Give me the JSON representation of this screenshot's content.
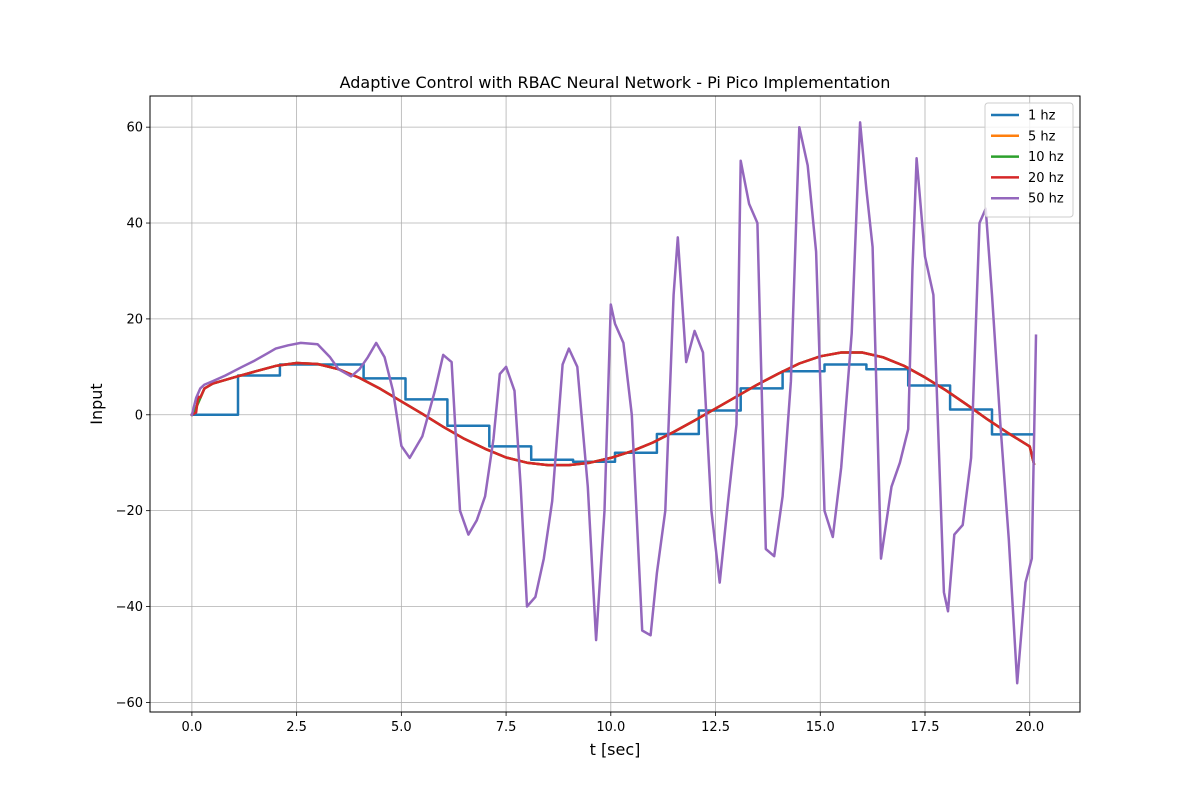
{
  "chart_data": {
    "type": "line",
    "title": "Adaptive Control with RBAC Neural Network - Pi Pico Implementation",
    "xlabel": "t [sec]",
    "ylabel": "Input",
    "xlim": [
      -1.0,
      21.2
    ],
    "ylim": [
      -62,
      66.5
    ],
    "xticks": [
      0.0,
      2.5,
      5.0,
      7.5,
      10.0,
      12.5,
      15.0,
      17.5,
      20.0
    ],
    "xtick_labels": [
      "0.0",
      "2.5",
      "5.0",
      "7.5",
      "10.0",
      "12.5",
      "15.0",
      "17.5",
      "20.0"
    ],
    "yticks": [
      -60,
      -40,
      -20,
      0,
      20,
      40,
      60
    ],
    "ytick_labels": [
      "−60",
      "−40",
      "−20",
      "0",
      "20",
      "40",
      "60"
    ],
    "grid": true,
    "legend_position": "top-right",
    "series": [
      {
        "name": "1 hz",
        "color": "#1f77b4",
        "x": [
          0,
          0.05,
          1.1,
          1.1,
          2.1,
          2.1,
          3.1,
          3.1,
          4.1,
          4.1,
          5.1,
          5.1,
          6.1,
          6.1,
          7.1,
          7.1,
          8.1,
          8.1,
          9.1,
          9.1,
          10.1,
          10.1,
          11.1,
          11.1,
          12.1,
          12.1,
          13.1,
          13.1,
          14.1,
          14.1,
          15.1,
          15.1,
          16.1,
          16.1,
          17.1,
          17.1,
          18.1,
          18.1,
          19.1,
          19.1,
          20.05
        ],
        "y": [
          0,
          0,
          0,
          8.2,
          8.2,
          10.5,
          10.5,
          10.5,
          10.5,
          7.6,
          7.6,
          3.2,
          3.2,
          -2.3,
          -2.3,
          -6.6,
          -6.6,
          -9.4,
          -9.4,
          -9.8,
          -9.8,
          -7.9,
          -7.9,
          -4.0,
          -4.0,
          0.9,
          0.9,
          5.5,
          5.5,
          9.1,
          9.1,
          10.5,
          10.5,
          9.5,
          9.5,
          6.1,
          6.1,
          1.1,
          1.1,
          -4.1,
          -4.1
        ]
      },
      {
        "name": "5 hz",
        "color": "#ff7f0e",
        "x": [
          0,
          0.1,
          0.2,
          0.3,
          0.5,
          1,
          1.5,
          2,
          2.5,
          3,
          3.5,
          4,
          4.5,
          5,
          5.5,
          6,
          6.5,
          7,
          7.5,
          8,
          8.5,
          9,
          9.5,
          10,
          10.5,
          11,
          11.5,
          12,
          12.5,
          13,
          13.5,
          14,
          14.5,
          15,
          15.5,
          16,
          16.5,
          17,
          17.5,
          18,
          18.5,
          19,
          19.5,
          20,
          20.1
        ],
        "y": [
          0,
          1.5,
          3.5,
          5.5,
          6.5,
          7.8,
          9.0,
          10.2,
          10.8,
          10.6,
          9.5,
          7.7,
          5.4,
          2.8,
          0.2,
          -2.5,
          -5.0,
          -7.1,
          -8.9,
          -10.0,
          -10.5,
          -10.5,
          -10.0,
          -9.0,
          -7.6,
          -5.8,
          -3.6,
          -1.2,
          1.3,
          3.8,
          6.3,
          8.6,
          10.7,
          12.2,
          13.0,
          13.0,
          12.0,
          10.2,
          7.8,
          5.1,
          2.1,
          -1.0,
          -3.9,
          -6.6,
          -10.2
        ]
      },
      {
        "name": "10 hz",
        "color": "#2ca02c",
        "x": [
          0,
          0.1,
          0.2,
          0.3,
          0.5,
          1,
          1.5,
          2,
          2.5,
          3,
          3.5,
          4,
          4.5,
          5,
          5.5,
          6,
          6.5,
          7,
          7.5,
          8,
          8.5,
          9,
          9.5,
          10,
          10.5,
          11,
          11.5,
          12,
          12.5,
          13,
          13.5,
          14,
          14.5,
          15,
          15.5,
          16,
          16.5,
          17,
          17.5,
          18,
          18.5,
          19,
          19.5,
          20,
          20.1
        ],
        "y": [
          0,
          1.5,
          3.5,
          5.5,
          6.5,
          7.8,
          9.0,
          10.2,
          10.8,
          10.6,
          9.5,
          7.7,
          5.4,
          2.8,
          0.2,
          -2.5,
          -5.0,
          -7.1,
          -8.9,
          -10.0,
          -10.5,
          -10.5,
          -10.0,
          -9.0,
          -7.6,
          -5.8,
          -3.6,
          -1.2,
          1.3,
          3.8,
          6.3,
          8.6,
          10.7,
          12.2,
          13.0,
          13.0,
          12.0,
          10.2,
          7.8,
          5.1,
          2.1,
          -1.0,
          -3.9,
          -6.6,
          -10.2
        ]
      },
      {
        "name": "20 hz",
        "color": "#d62728",
        "x": [
          0,
          0.1,
          0.15,
          0.2,
          0.3,
          0.5,
          1,
          1.5,
          2,
          2.5,
          3,
          3.5,
          4,
          4.5,
          5,
          5.5,
          6,
          6.5,
          7,
          7.5,
          8,
          8.5,
          9,
          9.5,
          10,
          10.5,
          11,
          11.5,
          12,
          12.5,
          13,
          13.5,
          14,
          14.5,
          15,
          15.5,
          16,
          16.5,
          17,
          17.5,
          18,
          18.5,
          19,
          19.5,
          20,
          20.1
        ],
        "y": [
          0,
          0.5,
          3.8,
          3.6,
          5.5,
          6.5,
          7.8,
          9.0,
          10.2,
          10.8,
          10.6,
          9.5,
          7.7,
          5.4,
          2.8,
          0.2,
          -2.5,
          -5.0,
          -7.1,
          -8.9,
          -10.0,
          -10.5,
          -10.5,
          -10.0,
          -9.0,
          -7.6,
          -5.8,
          -3.6,
          -1.2,
          1.3,
          3.8,
          6.3,
          8.6,
          10.7,
          12.2,
          13.0,
          13.0,
          12.0,
          10.2,
          7.8,
          5.1,
          2.1,
          -1.0,
          -3.9,
          -6.6,
          -10.2
        ]
      },
      {
        "name": "50 hz",
        "color": "#9467bd",
        "x": [
          0,
          0.1,
          0.2,
          0.3,
          0.5,
          0.8,
          1.2,
          1.5,
          1.8,
          2.0,
          2.3,
          2.6,
          3.0,
          3.3,
          3.5,
          3.8,
          4.0,
          4.2,
          4.4,
          4.6,
          4.8,
          5.0,
          5.2,
          5.5,
          5.8,
          6.0,
          6.2,
          6.4,
          6.6,
          6.8,
          7.0,
          7.2,
          7.35,
          7.5,
          7.7,
          7.85,
          8.0,
          8.2,
          8.4,
          8.6,
          8.85,
          9.0,
          9.2,
          9.45,
          9.65,
          9.85,
          10.0,
          10.1,
          10.3,
          10.5,
          10.75,
          10.95,
          11.1,
          11.3,
          11.5,
          11.6,
          11.8,
          12.0,
          12.2,
          12.4,
          12.6,
          12.8,
          13.0,
          13.1,
          13.3,
          13.5,
          13.7,
          13.9,
          14.1,
          14.3,
          14.5,
          14.7,
          14.9,
          15.1,
          15.3,
          15.5,
          15.75,
          15.95,
          16.1,
          16.25,
          16.45,
          16.7,
          16.9,
          17.1,
          17.2,
          17.3,
          17.5,
          17.7,
          17.95,
          18.05,
          18.2,
          18.4,
          18.6,
          18.8,
          18.95,
          19.1,
          19.3,
          19.5,
          19.7,
          19.9,
          20.05,
          20.15
        ],
        "y": [
          0,
          3.5,
          5.5,
          6.3,
          7.0,
          8.2,
          10.0,
          11.3,
          12.8,
          13.8,
          14.5,
          15.0,
          14.7,
          12.0,
          9.5,
          8.0,
          9.5,
          12.0,
          15.0,
          12.0,
          5.0,
          -6.5,
          -9.0,
          -4.5,
          5.0,
          12.5,
          11.0,
          -20.0,
          -25.0,
          -22.0,
          -17.0,
          -5.0,
          8.5,
          10.0,
          5.0,
          -15.0,
          -40.0,
          -38.0,
          -30.0,
          -18.0,
          10.5,
          13.8,
          10.0,
          -15.0,
          -47.0,
          -20.0,
          23.0,
          19.0,
          15.0,
          0.0,
          -45.0,
          -46.0,
          -33.0,
          -20.0,
          25.0,
          37.0,
          11.0,
          17.5,
          13.0,
          -20.0,
          -35.0,
          -18.0,
          -2.0,
          53.0,
          44.0,
          40.0,
          -28.0,
          -29.5,
          -17.0,
          7.0,
          60.0,
          52.0,
          34.0,
          -20.0,
          -25.5,
          -11.0,
          17.0,
          61.0,
          47.0,
          35.0,
          -30.0,
          -15.0,
          -10.0,
          -3.0,
          30.0,
          53.5,
          33.0,
          25.0,
          -37.0,
          -41.0,
          -25.0,
          -23.0,
          -9.0,
          40.0,
          43.0,
          25.0,
          -2.0,
          -26.0,
          -56.0,
          -35.0,
          -30.0,
          16.5
        ]
      }
    ]
  }
}
